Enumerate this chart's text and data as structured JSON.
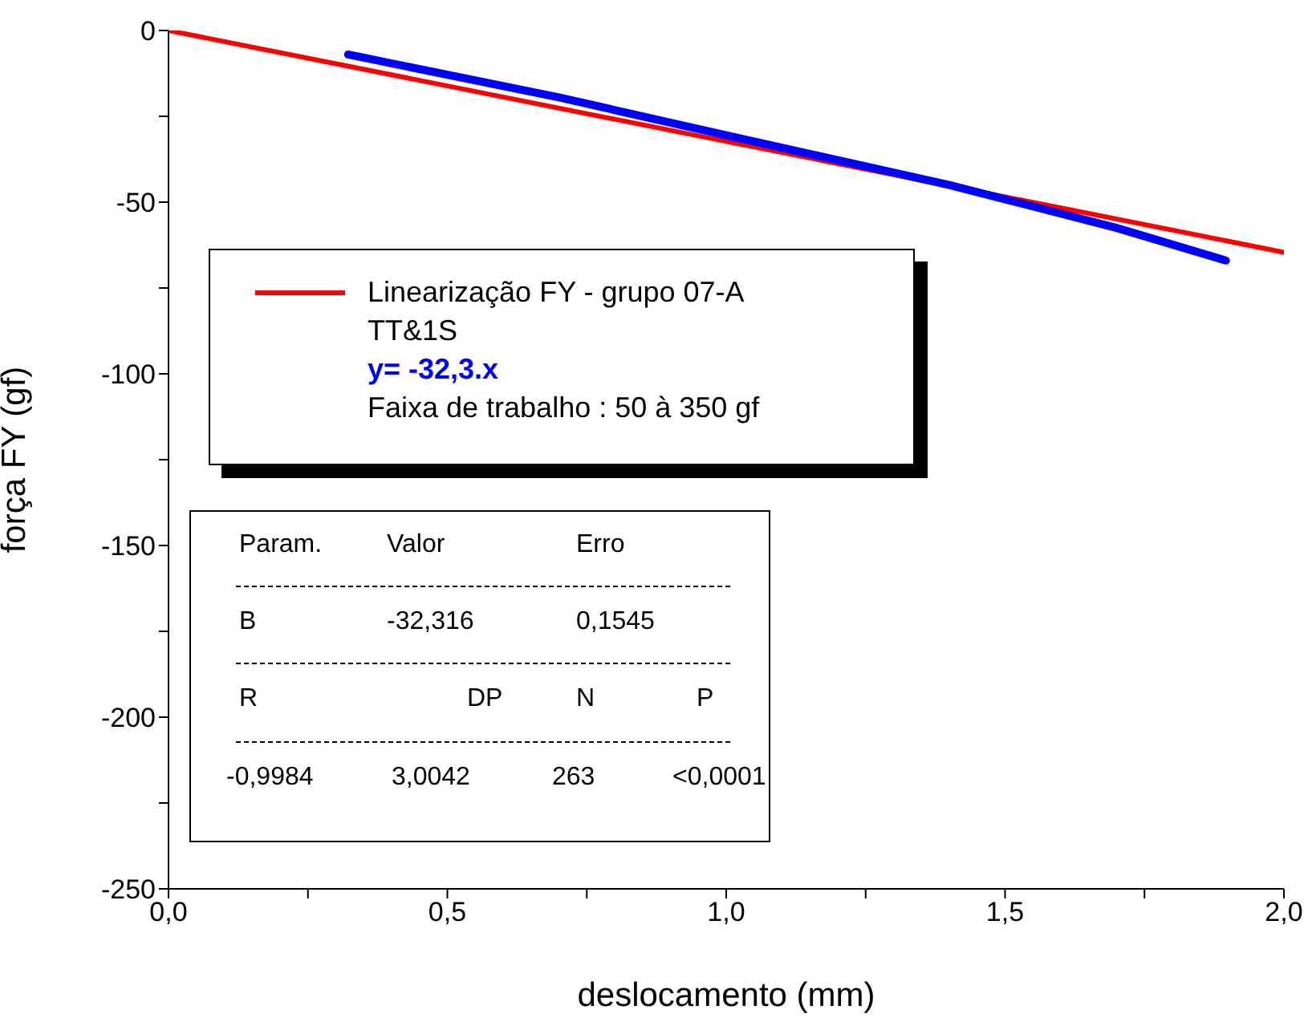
{
  "chart_data": {
    "type": "line",
    "xlabel": "deslocamento (mm)",
    "ylabel": "força FY (gf)",
    "xlim": [
      0,
      2
    ],
    "ylim": [
      -250,
      0
    ],
    "xticks": [
      {
        "value": 0,
        "label": "0,0"
      },
      {
        "value": 0.25,
        "label": null
      },
      {
        "value": 0.5,
        "label": "0,5"
      },
      {
        "value": 0.75,
        "label": null
      },
      {
        "value": 1,
        "label": "1,0"
      },
      {
        "value": 1.25,
        "label": null
      },
      {
        "value": 1.5,
        "label": "1,5"
      },
      {
        "value": 1.75,
        "label": null
      },
      {
        "value": 2,
        "label": "2,0"
      }
    ],
    "yticks": [
      {
        "value": -250,
        "label": "-250"
      },
      {
        "value": -225,
        "label": null
      },
      {
        "value": -200,
        "label": "-200"
      },
      {
        "value": -175,
        "label": null
      },
      {
        "value": -150,
        "label": "-150"
      },
      {
        "value": -125,
        "label": null
      },
      {
        "value": -100,
        "label": "-100"
      },
      {
        "value": -75,
        "label": null
      },
      {
        "value": -50,
        "label": "-50"
      },
      {
        "value": -25,
        "label": null
      },
      {
        "value": 0,
        "label": "0"
      }
    ],
    "series": [
      {
        "name": "Linearização FY - grupo 07-A",
        "color": "#ff0000",
        "x": [
          0,
          2
        ],
        "values": [
          0,
          -64.6
        ]
      },
      {
        "color": "#0000ff",
        "x": [
          0.322,
          0.7,
          1.0,
          1.4,
          1.7,
          1.896
        ],
        "values": [
          -7,
          -19.5,
          -30.5,
          -45,
          -57.5,
          -67
        ]
      }
    ],
    "legend": "center left",
    "grid": false,
    "marker": "none",
    "line_style": "solid",
    "annotations": [
      "TT&1S",
      "y= -32,3.x",
      "Faixa de trabalho : 50 à 350 gf",
      "Param.",
      "Valor",
      "Erro",
      "B",
      "-32,316",
      "0,1545",
      "R",
      "DP",
      "N",
      "P",
      "-0,9984",
      "3,0042",
      "263",
      "<0,0001"
    ]
  }
}
